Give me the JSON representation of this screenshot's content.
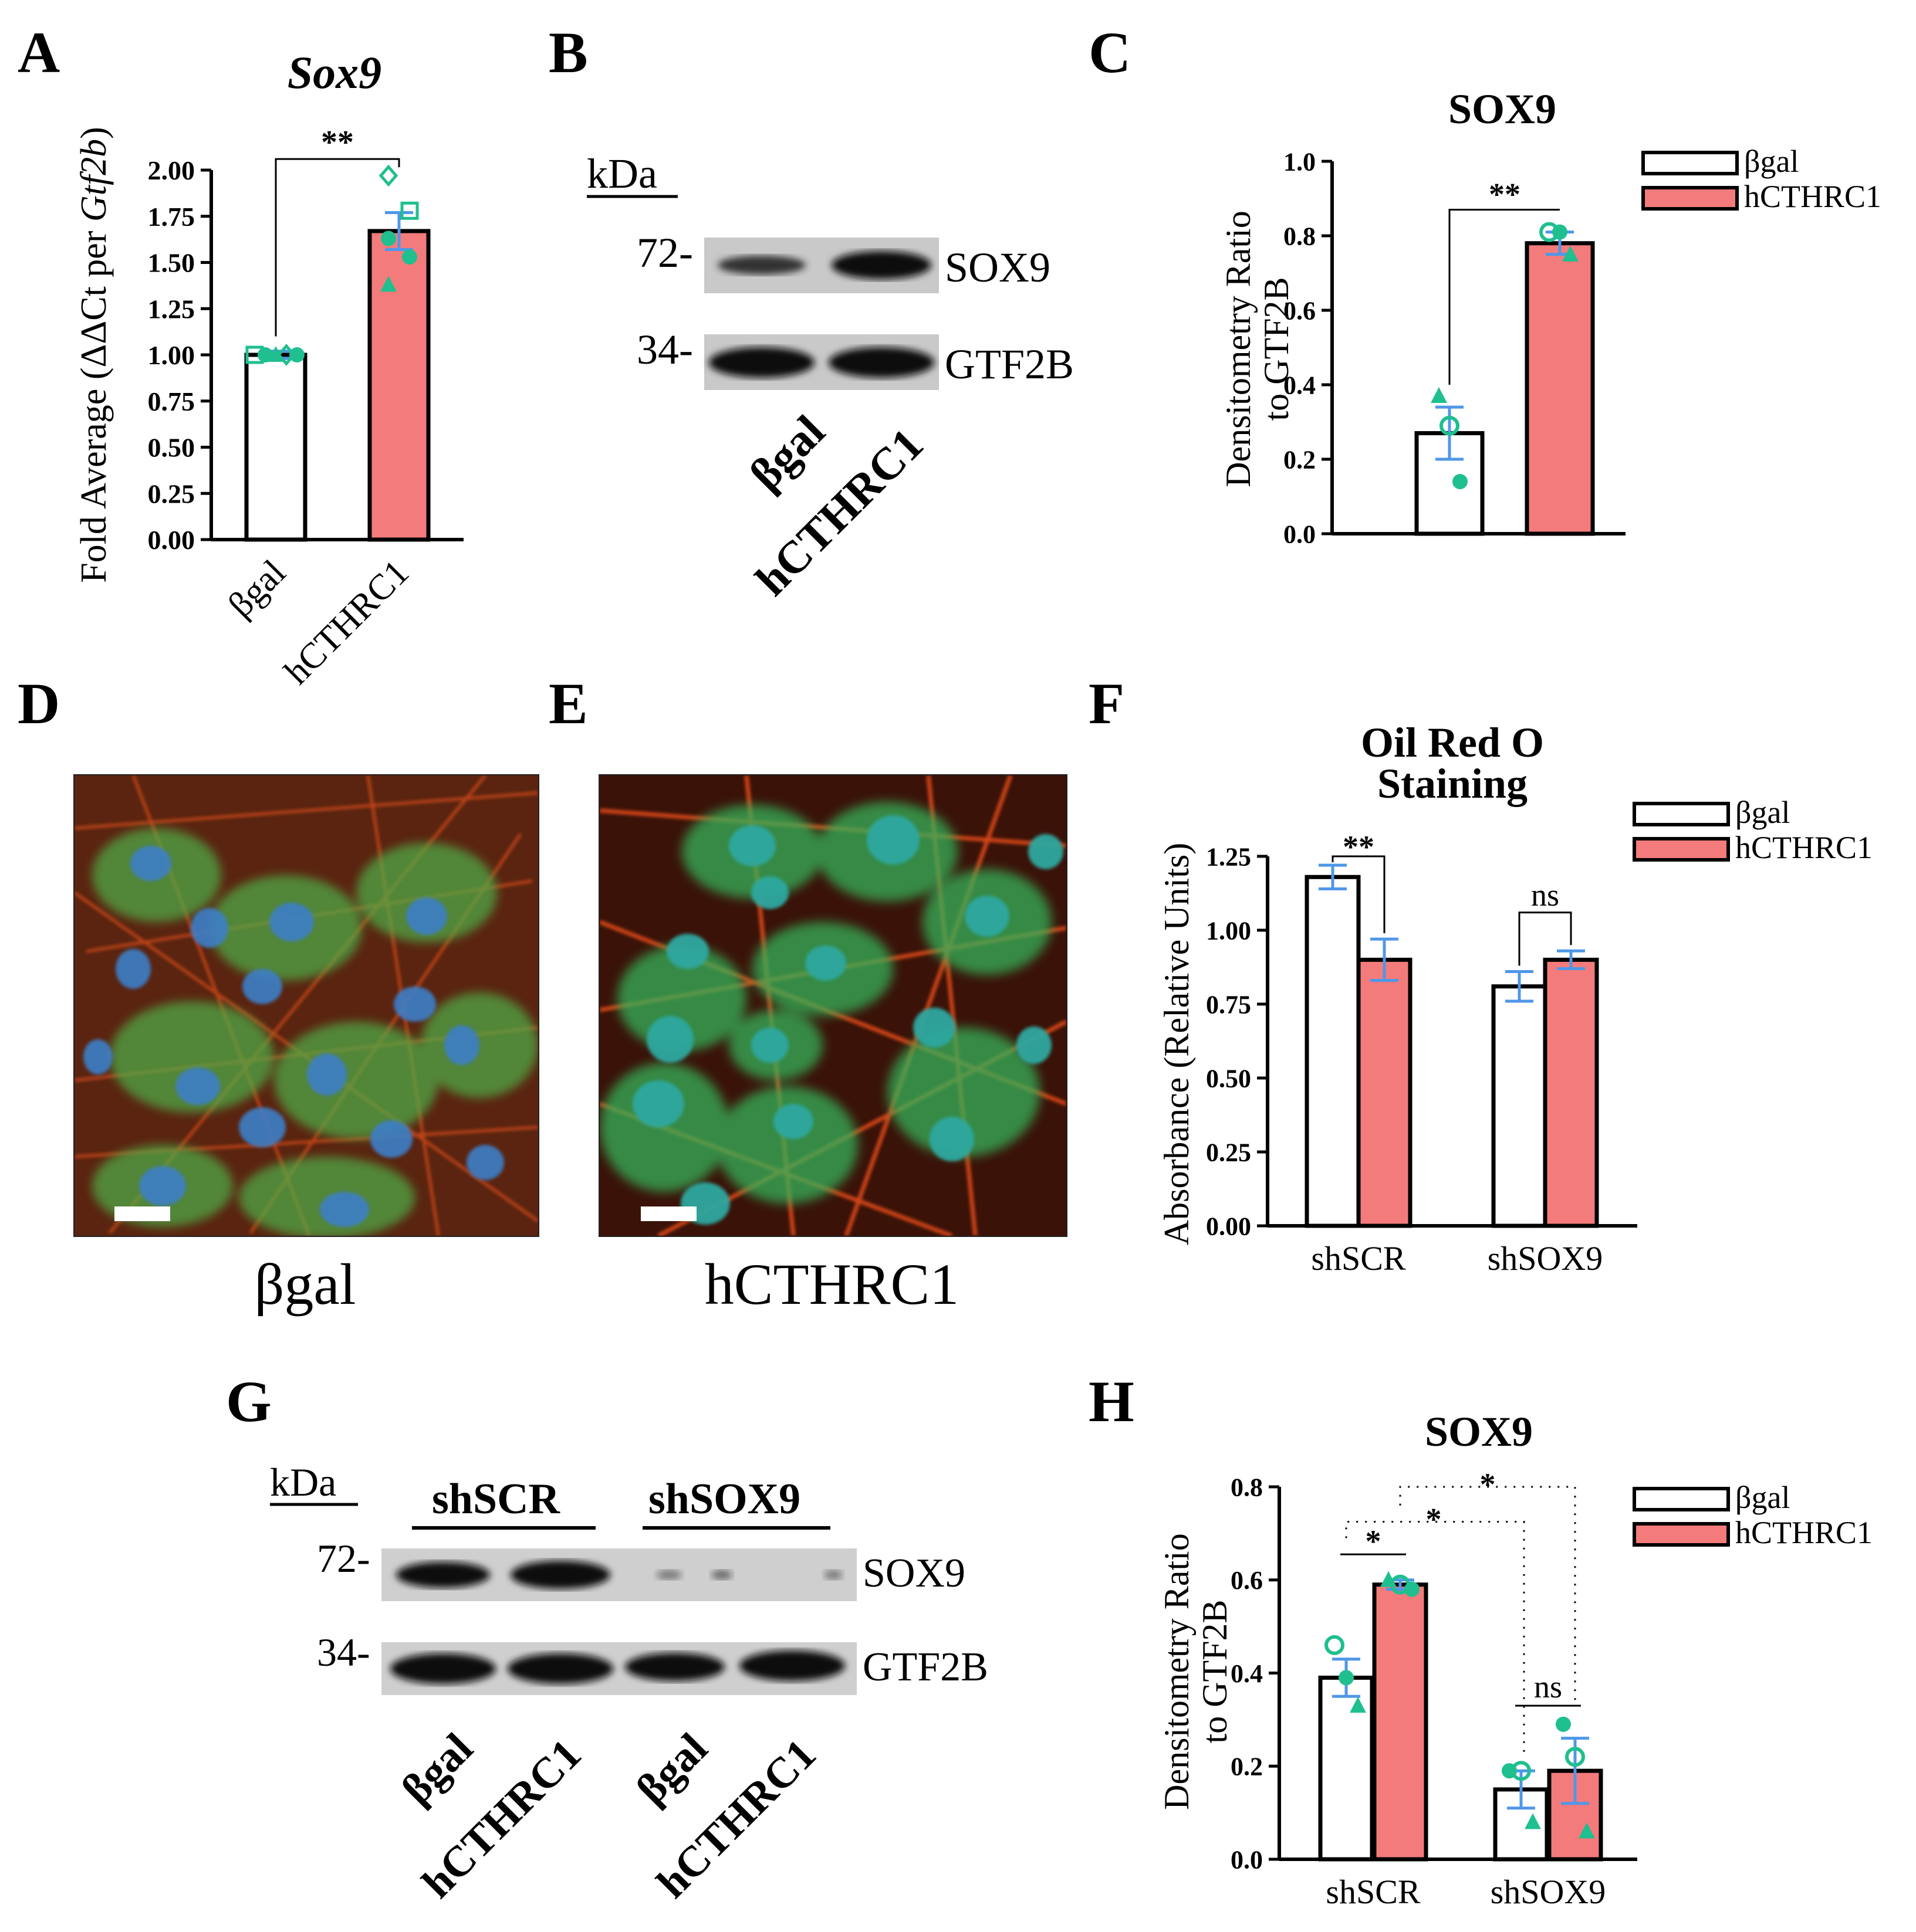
{
  "panels": {
    "A": {
      "letter": "A"
    },
    "B": {
      "letter": "B"
    },
    "C": {
      "letter": "C"
    },
    "D": {
      "letter": "D"
    },
    "E": {
      "letter": "E"
    },
    "F": {
      "letter": "F"
    },
    "G": {
      "letter": "G"
    },
    "H": {
      "letter": "H"
    }
  },
  "colors": {
    "bgal_fill": "#ffffff",
    "hcthrc1_fill": "#f47b7b",
    "point_green": "#1fbf8f",
    "err_blue": "#4f97e8",
    "bar_stroke": "#000000"
  },
  "blotB": {
    "kda": "kDa",
    "markers": [
      "72-",
      "34-"
    ],
    "bands": [
      "SOX9",
      "GTF2B"
    ],
    "lanes": [
      "βgal",
      "hCTHRC1"
    ]
  },
  "blotG": {
    "kda": "kDa",
    "groups": [
      "shSCR",
      "shSOX9"
    ],
    "markers": [
      "72-",
      "34-"
    ],
    "bands": [
      "SOX9",
      "GTF2B"
    ],
    "lanes": [
      "βgal",
      "hCTHRC1",
      "βgal",
      "hCTHRC1"
    ]
  },
  "micro": {
    "D_caption": "βgal",
    "E_caption": "hCTHRC1"
  },
  "chart_data": [
    {
      "id": "A",
      "type": "bar",
      "title": "Sox9",
      "ylabel_prefix": "Fold Average (ΔΔCt per ",
      "ylabel_italic": "Gtf2b",
      "ylabel_suffix": ")",
      "categories": [
        "βgal",
        "hCTHRC1"
      ],
      "values": [
        1.0,
        1.67
      ],
      "errors": [
        0.02,
        0.1
      ],
      "points": [
        [
          1.0,
          1.0,
          1.0,
          1.0,
          1.0
        ],
        [
          1.97,
          1.78,
          1.63,
          1.53,
          1.38
        ]
      ],
      "ylim": [
        0,
        2.0
      ],
      "yticks": [
        "0.00",
        "0.25",
        "0.50",
        "0.75",
        "1.00",
        "1.25",
        "1.50",
        "1.75",
        "2.00"
      ],
      "significance": [
        {
          "label": "**",
          "from": 0,
          "to": 1
        }
      ]
    },
    {
      "id": "C",
      "type": "bar",
      "title": "SOX9",
      "ylabel_lines": [
        "Densitometry Ratio",
        "to GTF2B"
      ],
      "categories": [
        "βgal",
        "hCTHRC1"
      ],
      "values": [
        0.27,
        0.78
      ],
      "errors": [
        0.07,
        0.03
      ],
      "points": [
        [
          0.37,
          0.29,
          0.14
        ],
        [
          0.81,
          0.81,
          0.75
        ]
      ],
      "ylim": [
        0,
        1.0
      ],
      "yticks": [
        "0.0",
        "0.2",
        "0.4",
        "0.6",
        "0.8",
        "1.0"
      ],
      "legend": [
        "βgal",
        "hCTHRC1"
      ],
      "significance": [
        {
          "label": "**",
          "from": 0,
          "to": 1
        }
      ]
    },
    {
      "id": "F",
      "type": "bar",
      "title_lines": [
        "Oil Red O",
        "Staining"
      ],
      "ylabel": "Absorbance (Relative Units)",
      "categories": [
        "shSCR",
        "shSOX9"
      ],
      "series": [
        {
          "name": "βgal",
          "values": [
            1.18,
            0.81
          ],
          "errors": [
            0.04,
            0.05
          ]
        },
        {
          "name": "hCTHRC1",
          "values": [
            0.9,
            0.9
          ],
          "errors": [
            0.07,
            0.03
          ]
        }
      ],
      "ylim": [
        0,
        1.25
      ],
      "yticks": [
        "0.00",
        "0.25",
        "0.50",
        "0.75",
        "1.00",
        "1.25"
      ],
      "legend": [
        "βgal",
        "hCTHRC1"
      ],
      "significance": [
        {
          "label": "**",
          "group": 0
        },
        {
          "label": "ns",
          "group": 1
        }
      ]
    },
    {
      "id": "H",
      "type": "bar",
      "title": "SOX9",
      "ylabel_lines": [
        "Densitometry Ratio",
        "to GTF2B"
      ],
      "categories": [
        "shSCR",
        "shSOX9"
      ],
      "series": [
        {
          "name": "βgal",
          "values": [
            0.39,
            0.15
          ],
          "errors": [
            0.04,
            0.04
          ],
          "points": [
            [
              0.46,
              0.39,
              0.33
            ],
            [
              0.19,
              0.19,
              0.08
            ]
          ]
        },
        {
          "name": "hCTHRC1",
          "values": [
            0.59,
            0.19
          ],
          "errors": [
            0.01,
            0.07
          ],
          "points": [
            [
              0.6,
              0.59,
              0.58
            ],
            [
              0.29,
              0.22,
              0.06
            ]
          ]
        }
      ],
      "ylim": [
        0,
        0.8
      ],
      "yticks": [
        "0.0",
        "0.2",
        "0.4",
        "0.6",
        "0.8"
      ],
      "legend": [
        "βgal",
        "hCTHRC1"
      ],
      "significance": [
        {
          "label": "*",
          "type": "within"
        },
        {
          "label": "*",
          "type": "across-bgal"
        },
        {
          "label": "*",
          "type": "across-hcthrc1"
        },
        {
          "label": "ns",
          "type": "within2"
        }
      ]
    }
  ]
}
